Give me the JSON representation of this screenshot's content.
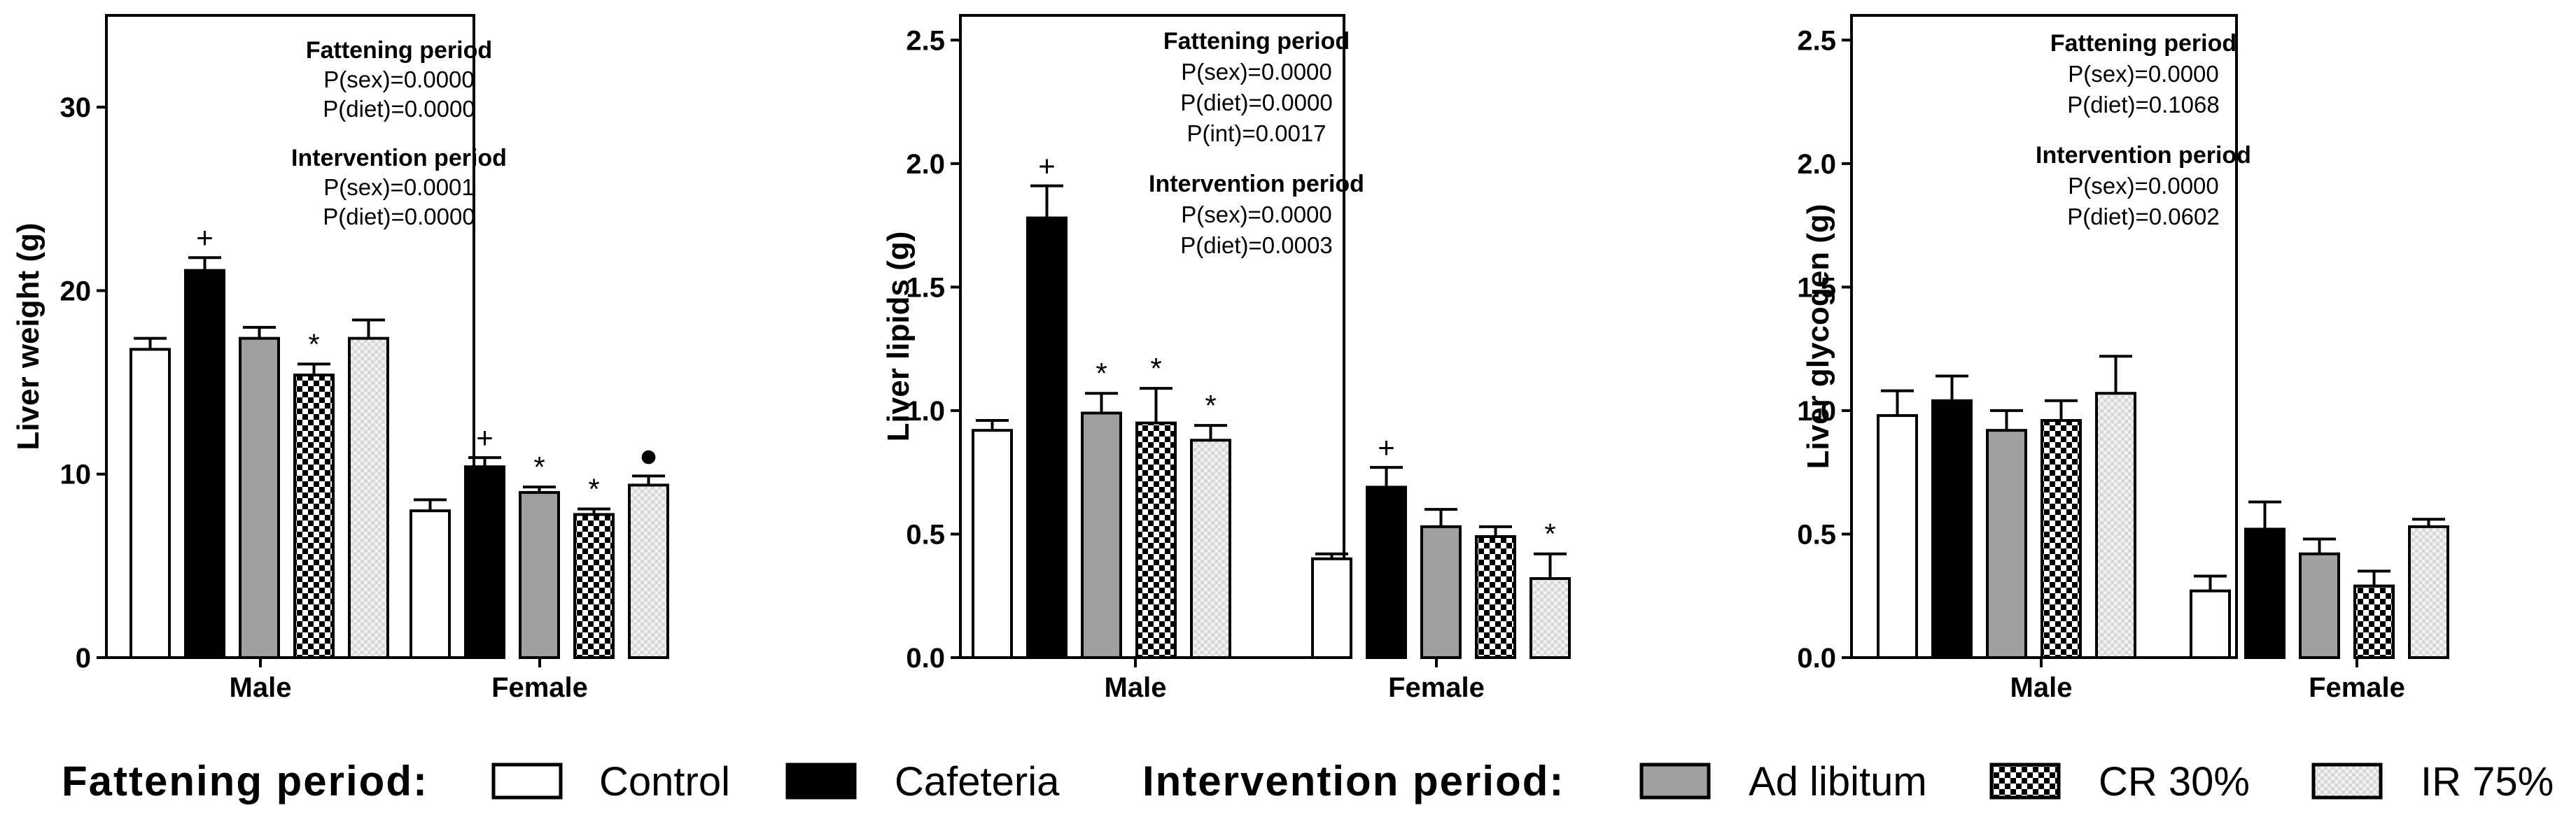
{
  "colors": {
    "control": "#ffffff",
    "cafeteria": "#000000",
    "ad_libitum": "#a0a0a0",
    "cr30": "checker",
    "ir75": "#dddddd"
  },
  "chart_data": [
    {
      "type": "bar",
      "ylabel": "Liver weight (g)",
      "ylim": [
        0,
        35
      ],
      "yticks": [
        0,
        10,
        20,
        30
      ],
      "categories": [
        "Male",
        "Female"
      ],
      "series": [
        {
          "name": "Control",
          "values": [
            16.8,
            8.0
          ],
          "errors": [
            0.6,
            0.6
          ],
          "sig": [
            "",
            ""
          ]
        },
        {
          "name": "Cafeteria",
          "values": [
            21.1,
            10.4
          ],
          "errors": [
            0.7,
            0.5
          ],
          "sig": [
            "+",
            "+"
          ]
        },
        {
          "name": "Ad libitum",
          "values": [
            17.4,
            9.0
          ],
          "errors": [
            0.6,
            0.3
          ],
          "sig": [
            "",
            "*"
          ]
        },
        {
          "name": "CR 30%",
          "values": [
            15.4,
            7.8
          ],
          "errors": [
            0.6,
            0.3
          ],
          "sig": [
            "*",
            "*"
          ]
        },
        {
          "name": "IR 75%",
          "values": [
            17.4,
            9.4
          ],
          "errors": [
            1.0,
            0.5
          ],
          "sig": [
            "",
            "●"
          ]
        }
      ],
      "annotations": [
        {
          "heading": "Fattening period",
          "lines": [
            "P(sex)=0.0000",
            "P(diet)=0.0000"
          ]
        },
        {
          "heading": "Intervention period",
          "lines": [
            "P(sex)=0.0001",
            "P(diet)=0.0000"
          ]
        }
      ]
    },
    {
      "type": "bar",
      "ylabel": "Liver lipids (g)",
      "ylim": [
        0,
        2.6
      ],
      "yticks": [
        "0.0",
        "0.5",
        "1.0",
        "1.5",
        "2.0",
        "2.5"
      ],
      "categories": [
        "Male",
        "Female"
      ],
      "series": [
        {
          "name": "Control",
          "values": [
            0.92,
            0.4
          ],
          "errors": [
            0.04,
            0.02
          ],
          "sig": [
            "",
            ""
          ]
        },
        {
          "name": "Cafeteria",
          "values": [
            1.78,
            0.69
          ],
          "errors": [
            0.13,
            0.08
          ],
          "sig": [
            "+",
            "+"
          ]
        },
        {
          "name": "Ad libitum",
          "values": [
            0.99,
            0.53
          ],
          "errors": [
            0.08,
            0.07
          ],
          "sig": [
            "*",
            ""
          ]
        },
        {
          "name": "CR 30%",
          "values": [
            0.95,
            0.49
          ],
          "errors": [
            0.14,
            0.04
          ],
          "sig": [
            "*",
            ""
          ]
        },
        {
          "name": "IR 75%",
          "values": [
            0.88,
            0.32
          ],
          "errors": [
            0.06,
            0.1
          ],
          "sig": [
            "*",
            "*"
          ]
        }
      ],
      "annotations": [
        {
          "heading": "Fattening period",
          "lines": [
            "P(sex)=0.0000",
            "P(diet)=0.0000",
            "P(int)=0.0017"
          ]
        },
        {
          "heading": "Intervention period",
          "lines": [
            "P(sex)=0.0000",
            "P(diet)=0.0003"
          ]
        }
      ]
    },
    {
      "type": "bar",
      "ylabel": "Liver glycogen (g)",
      "ylim": [
        0,
        2.6
      ],
      "yticks": [
        "0.0",
        "0.5",
        "1.0",
        "1.5",
        "2.0",
        "2.5"
      ],
      "categories": [
        "Male",
        "Female"
      ],
      "series": [
        {
          "name": "Control",
          "values": [
            0.98,
            0.27
          ],
          "errors": [
            0.1,
            0.06
          ],
          "sig": [
            "",
            ""
          ]
        },
        {
          "name": "Cafeteria",
          "values": [
            1.04,
            0.52
          ],
          "errors": [
            0.1,
            0.11
          ],
          "sig": [
            "",
            ""
          ]
        },
        {
          "name": "Ad libitum",
          "values": [
            0.92,
            0.42
          ],
          "errors": [
            0.08,
            0.06
          ],
          "sig": [
            "",
            ""
          ]
        },
        {
          "name": "CR 30%",
          "values": [
            0.96,
            0.29
          ],
          "errors": [
            0.08,
            0.06
          ],
          "sig": [
            "",
            ""
          ]
        },
        {
          "name": "IR 75%",
          "values": [
            1.07,
            0.53
          ],
          "errors": [
            0.15,
            0.03
          ],
          "sig": [
            "",
            ""
          ]
        }
      ],
      "annotations": [
        {
          "heading": "Fattening period",
          "lines": [
            "P(sex)=0.0000",
            "P(diet)=0.1068"
          ]
        },
        {
          "heading": "Intervention period",
          "lines": [
            "P(sex)=0.0000",
            "P(diet)=0.0602"
          ]
        }
      ]
    }
  ],
  "legend": {
    "fattening_label": "Fattening period:",
    "intervention_label": "Intervention period:",
    "items": [
      {
        "key": "control",
        "label": "Control"
      },
      {
        "key": "cafeteria",
        "label": "Cafeteria"
      },
      {
        "key": "ad_libitum",
        "label": "Ad libitum"
      },
      {
        "key": "cr30",
        "label": "CR 30%"
      },
      {
        "key": "ir75",
        "label": "IR 75%"
      }
    ]
  }
}
